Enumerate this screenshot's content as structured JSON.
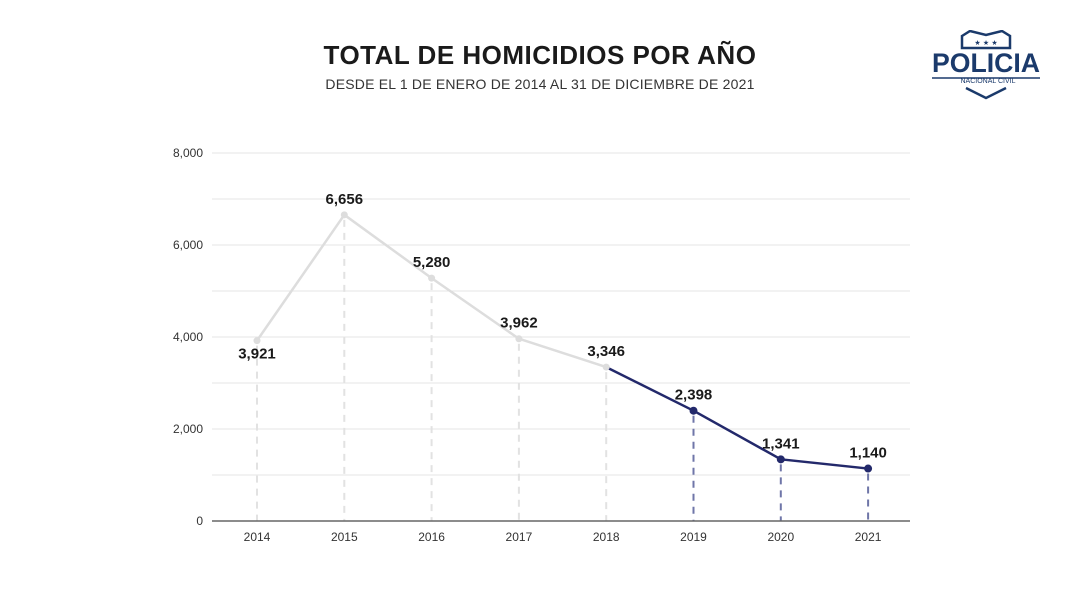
{
  "header": {
    "title": "TOTAL DE HOMICIDIOS POR AÑO",
    "subtitle": "DESDE EL 1 DE ENERO DE 2014 AL 31 DE DICIEMBRE DE 2021"
  },
  "logo": {
    "text": "POLICIA",
    "subtext": "NACIONAL CIVIL",
    "color": "#1b3a6b"
  },
  "chart_data": {
    "type": "line",
    "title": "TOTAL DE HOMICIDIOS POR AÑO",
    "subtitle": "DESDE EL 1 DE ENERO DE 2014 AL 31 DE DICIEMBRE DE 2021",
    "categories": [
      "2014",
      "2015",
      "2016",
      "2017",
      "2018",
      "2019",
      "2020",
      "2021"
    ],
    "values": [
      3921,
      6656,
      5280,
      3962,
      3346,
      2398,
      1341,
      1140
    ],
    "value_labels": [
      "3,921",
      "6,656",
      "5,280",
      "3,962",
      "3,346",
      "2,398",
      "1,341",
      "1,140"
    ],
    "ylim": [
      0,
      8000
    ],
    "yticks": [
      0,
      2000,
      4000,
      6000,
      8000
    ],
    "ytick_labels": [
      "0",
      "2,000",
      "4,000",
      "6,000",
      "8,000"
    ],
    "grid": true,
    "highlight_from_index": 4,
    "colors": {
      "base_line": "#dddddd",
      "highlight_line": "#23296b",
      "base_drop": "#e2e2e2",
      "highlight_drop": "#6f76a8",
      "grid": "#e6e6e6",
      "axis": "#666666"
    }
  }
}
